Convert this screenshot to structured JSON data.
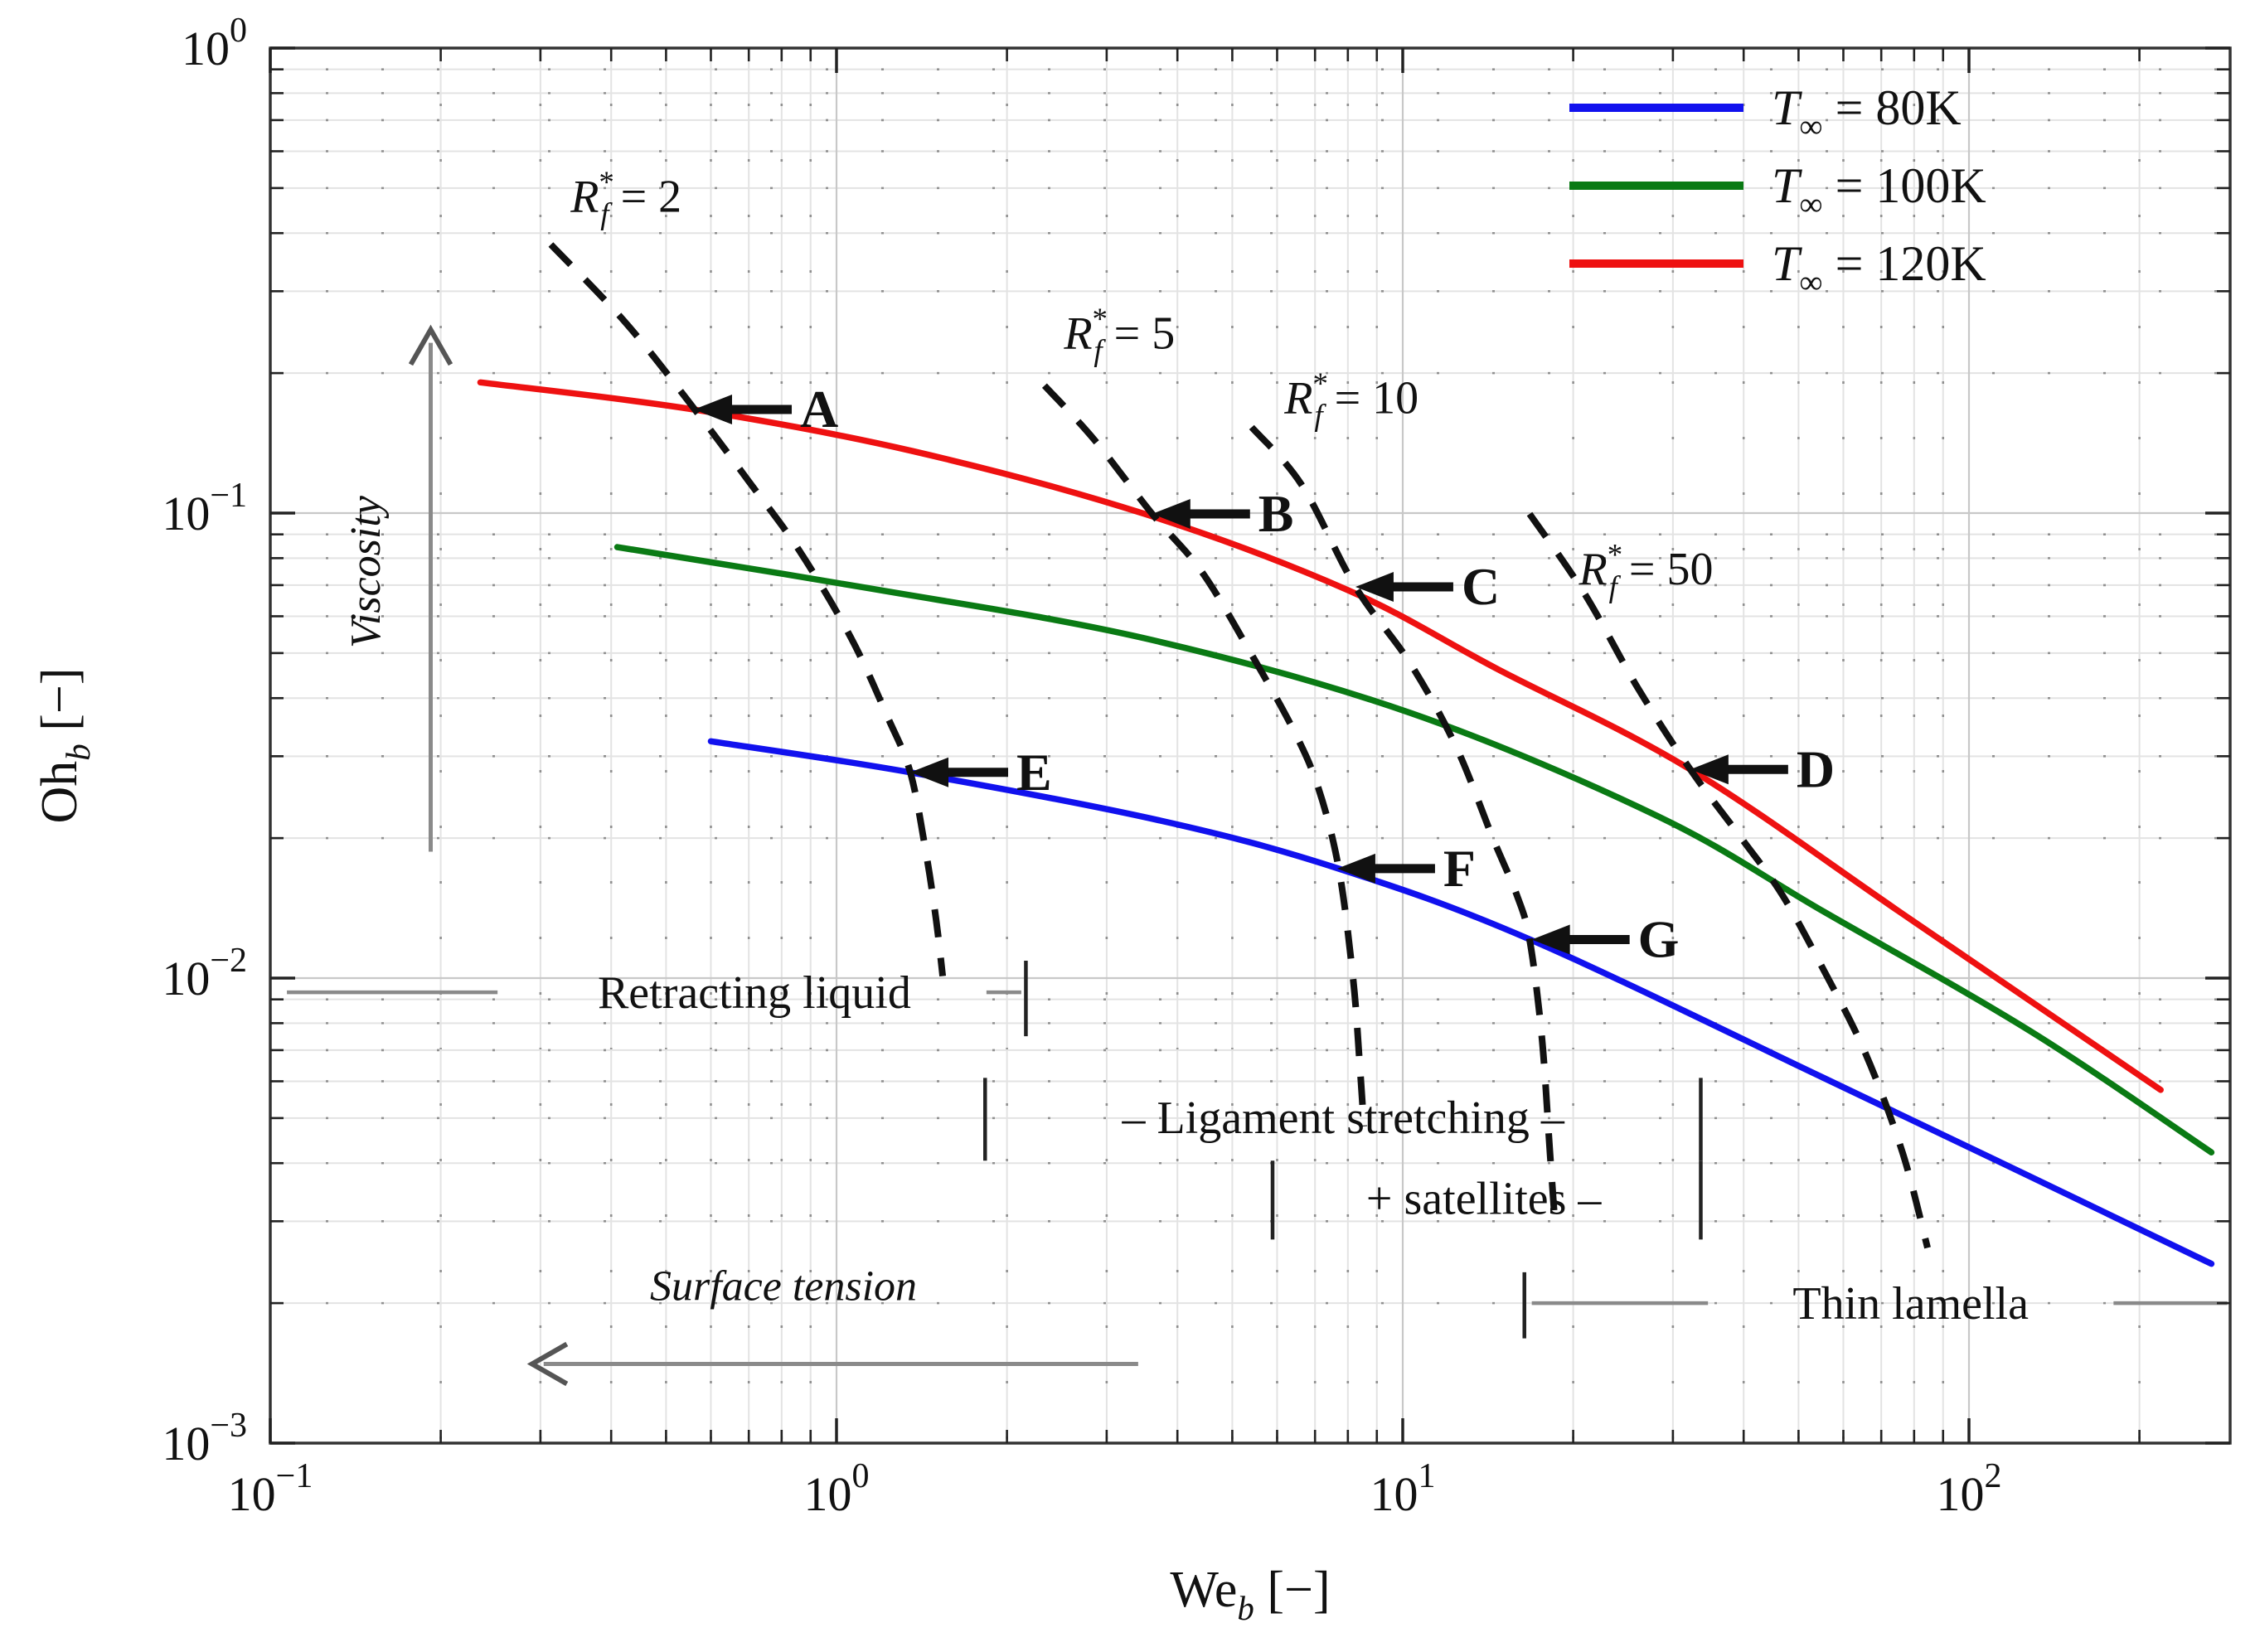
{
  "chart_data": {
    "type": "line",
    "title": "",
    "xlabel_parts": [
      {
        "t": "We"
      },
      {
        "t": "b",
        "sub": true,
        "italic": true
      },
      {
        "t": " [−]"
      }
    ],
    "ylabel_parts": [
      {
        "t": "Oh"
      },
      {
        "t": "b",
        "sub": true,
        "italic": true
      },
      {
        "t": " [−]"
      }
    ],
    "x_axis": {
      "scale": "log",
      "min": 0.1,
      "max": 289,
      "ticks": [
        {
          "v": 0.1,
          "exp": "−1"
        },
        {
          "v": 1,
          "exp": "0"
        },
        {
          "v": 10,
          "exp": "1"
        },
        {
          "v": 100,
          "exp": "2"
        }
      ]
    },
    "y_axis": {
      "scale": "log",
      "min": 0.001,
      "max": 1,
      "ticks": [
        {
          "v": 1,
          "exp": "0"
        },
        {
          "v": 0.1,
          "exp": "−1"
        },
        {
          "v": 0.01,
          "exp": "−2"
        },
        {
          "v": 0.001,
          "exp": "−3"
        }
      ]
    },
    "grid": true,
    "legend_position": "top-right",
    "series": [
      {
        "id": "t80",
        "color": "#1111ee",
        "legend_parts": [
          {
            "t": "T",
            "italic": true
          },
          {
            "t": "∞",
            "sub": true
          },
          {
            "t": " = 80K"
          }
        ],
        "points": [
          [
            0.6,
            0.0323
          ],
          [
            1.35,
            0.0277
          ],
          [
            3.74,
            0.0218
          ],
          [
            7.7,
            0.0172
          ],
          [
            16.8,
            0.0121
          ],
          [
            55.4,
            0.0061
          ],
          [
            129,
            0.00373
          ],
          [
            268,
            0.00243
          ]
        ]
      },
      {
        "id": "t100",
        "color": "#0a7a14",
        "legend_parts": [
          {
            "t": "T",
            "italic": true
          },
          {
            "t": "∞",
            "sub": true
          },
          {
            "t": " = 100K"
          }
        ],
        "points": [
          [
            0.41,
            0.0845
          ],
          [
            1.15,
            0.0688
          ],
          [
            3.5,
            0.0538
          ],
          [
            10.3,
            0.0372
          ],
          [
            28.2,
            0.0223
          ],
          [
            55.4,
            0.0139
          ],
          [
            129,
            0.00766
          ],
          [
            268,
            0.00422
          ]
        ]
      },
      {
        "id": "t120",
        "color": "#ee1111",
        "legend_parts": [
          {
            "t": "T",
            "italic": true
          },
          {
            "t": "∞",
            "sub": true
          },
          {
            "t": " = 120K"
          }
        ],
        "points": [
          [
            0.235,
            0.191
          ],
          [
            0.56,
            0.167
          ],
          [
            1.36,
            0.136
          ],
          [
            3.5,
            0.0996
          ],
          [
            8.0,
            0.0683
          ],
          [
            14.7,
            0.0462
          ],
          [
            32.2,
            0.0281
          ],
          [
            78.7,
            0.0134
          ],
          [
            218,
            0.00575
          ]
        ]
      }
    ],
    "isolines": [
      {
        "id": "rf2",
        "label_parts": [
          {
            "t": "R",
            "italic": true
          },
          {
            "t": "*",
            "sup": true
          },
          {
            "t": "f",
            "sub": true,
            "italic": true,
            "dx": -0.45
          },
          {
            "t": " = 2"
          }
        ],
        "label_at": [
          0.425,
          0.445
        ],
        "points": [
          [
            0.313,
            0.378
          ],
          [
            0.425,
            0.256
          ],
          [
            0.562,
            0.167
          ],
          [
            0.7,
            0.117
          ],
          [
            0.86,
            0.083
          ],
          [
            1.06,
            0.054
          ],
          [
            1.23,
            0.0365
          ],
          [
            1.35,
            0.0277
          ],
          [
            1.44,
            0.0185
          ],
          [
            1.5,
            0.0133
          ],
          [
            1.54,
            0.0101
          ]
        ]
      },
      {
        "id": "rf5",
        "label_parts": [
          {
            "t": "R",
            "italic": true
          },
          {
            "t": "*",
            "sup": true
          },
          {
            "t": "f",
            "sub": true,
            "italic": true,
            "dx": -0.45
          },
          {
            "t": " = 5"
          }
        ],
        "label_at": [
          3.16,
          0.226
        ],
        "points": [
          [
            2.33,
            0.188
          ],
          [
            2.85,
            0.144
          ],
          [
            3.61,
            0.0996
          ],
          [
            4.42,
            0.0747
          ],
          [
            5.41,
            0.0496
          ],
          [
            6.41,
            0.0342
          ],
          [
            7.09,
            0.0257
          ],
          [
            7.71,
            0.0172
          ],
          [
            8.17,
            0.01
          ],
          [
            8.39,
            0.0066
          ],
          [
            8.54,
            0.0048
          ]
        ]
      },
      {
        "id": "rf10",
        "label_parts": [
          {
            "t": "R",
            "italic": true
          },
          {
            "t": "*",
            "sup": true
          },
          {
            "t": "f",
            "sub": true,
            "italic": true,
            "dx": -0.45
          },
          {
            "t": " = 10"
          }
        ],
        "label_at": [
          8.12,
          0.164
        ],
        "points": [
          [
            5.41,
            0.153
          ],
          [
            6.63,
            0.115
          ],
          [
            8.25,
            0.0694
          ],
          [
            10.3,
            0.0476
          ],
          [
            12.4,
            0.0316
          ],
          [
            14.4,
            0.0201
          ],
          [
            15.9,
            0.0151
          ],
          [
            16.75,
            0.0121
          ],
          [
            17.6,
            0.0075
          ],
          [
            18.2,
            0.0042
          ],
          [
            18.6,
            0.0029
          ]
        ]
      },
      {
        "id": "rf50",
        "label_parts": [
          {
            "t": "R",
            "italic": true
          },
          {
            "t": "*",
            "sup": true
          },
          {
            "t": "f",
            "sub": true,
            "italic": true,
            "dx": -0.45
          },
          {
            "t": " = 50"
          }
        ],
        "label_at": [
          26.9,
          0.0702
        ],
        "points": [
          [
            16.75,
            0.0996
          ],
          [
            20.9,
            0.0674
          ],
          [
            26.0,
            0.0421
          ],
          [
            32.2,
            0.0281
          ],
          [
            39.5,
            0.0201
          ],
          [
            46.8,
            0.0151
          ],
          [
            55.4,
            0.0104
          ],
          [
            65.6,
            0.0069
          ],
          [
            76.3,
            0.00422
          ],
          [
            84.5,
            0.00263
          ]
        ]
      }
    ],
    "markers": [
      {
        "name": "A",
        "we": 0.56,
        "oh": 0.167
      },
      {
        "name": "B",
        "we": 3.61,
        "oh": 0.0996
      },
      {
        "name": "C",
        "we": 8.25,
        "oh": 0.0694
      },
      {
        "name": "D",
        "we": 32.2,
        "oh": 0.0281
      },
      {
        "name": "E",
        "we": 1.35,
        "oh": 0.0277
      },
      {
        "name": "F",
        "we": 7.66,
        "oh": 0.0172
      },
      {
        "name": "G",
        "we": 16.9,
        "oh": 0.0121
      }
    ],
    "annotations": {
      "regions": [
        {
          "id": "retracting-liquid",
          "text": "Retracting liquid",
          "at": [
            0.716,
            0.00932
          ],
          "hlines": [
            [
              0.107,
              0.252,
              0.00932
            ],
            [
              1.84,
              2.12,
              0.00932
            ]
          ],
          "vbars": [
            [
              2.16,
              0.0109,
              0.0075
            ]
          ]
        },
        {
          "id": "ligament-stretching",
          "text": "– Ligament stretching –",
          "at": [
            7.85,
            0.00502
          ],
          "hlines": [],
          "vbars": [
            [
              1.83,
              0.0061,
              0.00405
            ],
            [
              33.6,
              0.0061,
              0.00405
            ]
          ]
        },
        {
          "id": "satellites",
          "text": "+ satellites –",
          "at": [
            13.9,
            0.00336
          ],
          "hlines": [],
          "vbars": [
            [
              5.89,
              0.00405,
              0.00274
            ],
            [
              33.6,
              0.00405,
              0.00274
            ]
          ]
        },
        {
          "id": "thin-lamella",
          "text": "Thin lamella",
          "at": [
            78.9,
            0.002
          ],
          "hlines": [
            [
              16.9,
              34.6,
              0.002
            ],
            [
              180,
              286,
              0.002
            ]
          ],
          "vbars": [
            [
              16.4,
              0.00233,
              0.00168
            ]
          ]
        }
      ],
      "axis_arrows": [
        {
          "id": "viscosity",
          "text": "Viscosity",
          "orientation": "vertical",
          "we": 0.192,
          "oh_from": 0.0187,
          "oh_to": 0.246,
          "text_at": [
            0.156,
            0.0747
          ]
        },
        {
          "id": "surface-tension",
          "text": "Surface tension",
          "orientation": "horizontal",
          "oh": 0.00148,
          "we_from": 3.41,
          "we_to": 0.288,
          "text_at": [
            0.806,
            0.00203
          ]
        }
      ]
    }
  }
}
